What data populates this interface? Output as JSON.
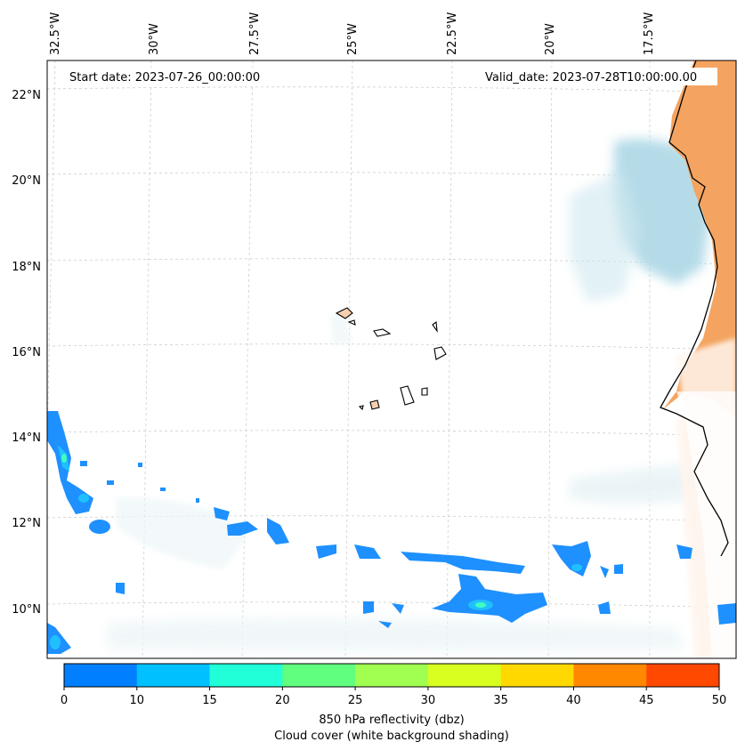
{
  "map": {
    "start_date": "Start date: 2023-07-26_00:00:00",
    "valid_date": "Valid_date: 2023-07-28T10:00:00.00",
    "lon_labels": [
      "32.5°W",
      "30°W",
      "27.5°W",
      "25°W",
      "22.5°W",
      "20°W",
      "17.5°W"
    ],
    "lat_labels": [
      "22°N",
      "20°N",
      "18°N",
      "16°N",
      "14°N",
      "12°N",
      "10°N"
    ],
    "gridlines": true,
    "land_color": "#f4a460",
    "cloud_color": "#add8e6",
    "reflectivity_color": "#1e90ff"
  },
  "colorbar": {
    "ticks": [
      "0",
      "10",
      "15",
      "20",
      "25",
      "30",
      "35",
      "40",
      "45",
      "50"
    ],
    "colors": [
      "#0080ff",
      "#00c0ff",
      "#20ffd8",
      "#60ff80",
      "#a0ff50",
      "#d8ff20",
      "#ffd800",
      "#ff8800",
      "#ff4800"
    ],
    "label_line1": "850 hPa reflectivity (dbz)",
    "label_line2": "Cloud cover (white background shading)"
  }
}
